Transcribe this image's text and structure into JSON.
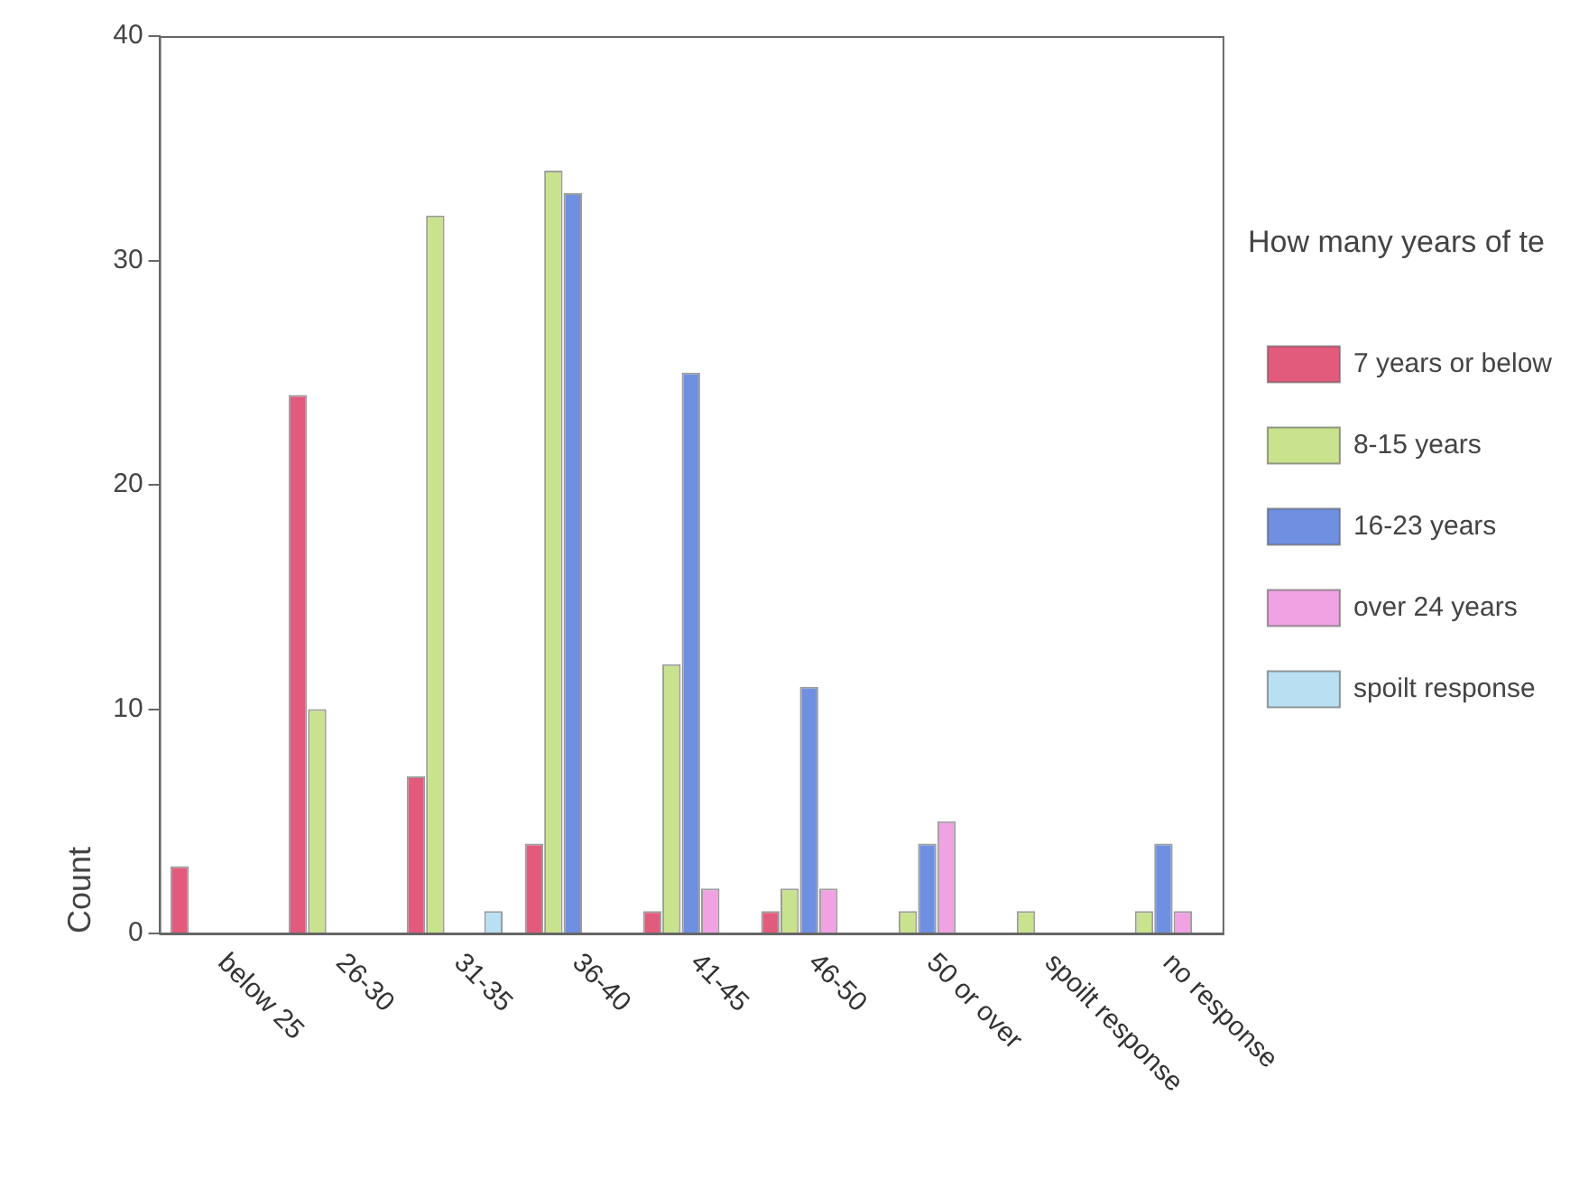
{
  "chart_data": {
    "type": "bar",
    "ylabel": "Count",
    "legend_title": "How many years of te",
    "categories": [
      "below 25",
      "26-30",
      "31-35",
      "36-40",
      "41-45",
      "46-50",
      "50 or over",
      "spoilt response",
      "no response"
    ],
    "series": [
      {
        "name": "7 years or below",
        "color": "#e25a7c",
        "values": [
          3,
          24,
          7,
          4,
          1,
          1,
          null,
          null,
          null
        ]
      },
      {
        "name": "8-15 years",
        "color": "#c9e28e",
        "values": [
          null,
          10,
          32,
          34,
          12,
          2,
          1,
          1,
          1
        ]
      },
      {
        "name": "16-23 years",
        "color": "#6f8fe0",
        "values": [
          null,
          null,
          null,
          33,
          25,
          11,
          4,
          null,
          4
        ]
      },
      {
        "name": "over 24 years",
        "color": "#f0a2e2",
        "values": [
          null,
          null,
          null,
          null,
          2,
          2,
          5,
          null,
          1
        ]
      },
      {
        "name": "spoilt response",
        "color": "#b9e0f2",
        "values": [
          null,
          null,
          1,
          null,
          null,
          null,
          null,
          null,
          null
        ]
      }
    ],
    "ylim": [
      0,
      40
    ],
    "yticks": [
      0,
      10,
      20,
      30,
      40
    ],
    "grid": false,
    "legend": "right"
  }
}
